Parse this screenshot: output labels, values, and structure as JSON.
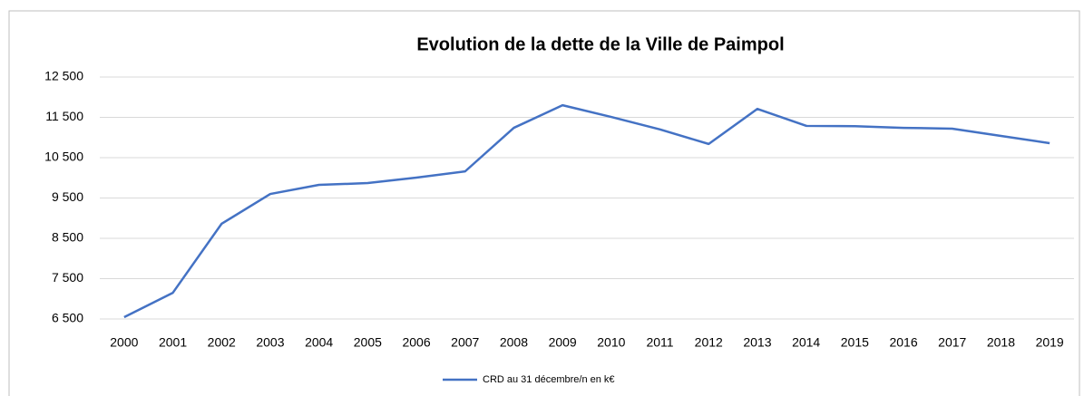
{
  "chart_data": {
    "type": "line",
    "title": "Evolution de la dette de la Ville de Paimpol",
    "categories": [
      "2000",
      "2001",
      "2002",
      "2003",
      "2004",
      "2005",
      "2006",
      "2007",
      "2008",
      "2009",
      "2010",
      "2011",
      "2012",
      "2013",
      "2014",
      "2015",
      "2016",
      "2017",
      "2018",
      "2019"
    ],
    "series": [
      {
        "name": "CRD au 31 décembre/n en k€",
        "color": "#4472c4",
        "values": [
          6545,
          7150,
          8860,
          9600,
          9825,
          9870,
          10005,
          10160,
          11240,
          11800,
          11510,
          11200,
          10840,
          11710,
          11290,
          11280,
          11240,
          11220,
          11040,
          10860
        ]
      }
    ],
    "ylim": [
      6500,
      12500
    ],
    "yticks": [
      {
        "value": 6500,
        "label": "6 500"
      },
      {
        "value": 7500,
        "label": "7 500"
      },
      {
        "value": 8500,
        "label": "8 500"
      },
      {
        "value": 9500,
        "label": "9 500"
      },
      {
        "value": 10500,
        "label": "10 500"
      },
      {
        "value": 11500,
        "label": "11 500"
      },
      {
        "value": 12500,
        "label": "12 500"
      }
    ],
    "grid": true,
    "legend": "bottom"
  }
}
